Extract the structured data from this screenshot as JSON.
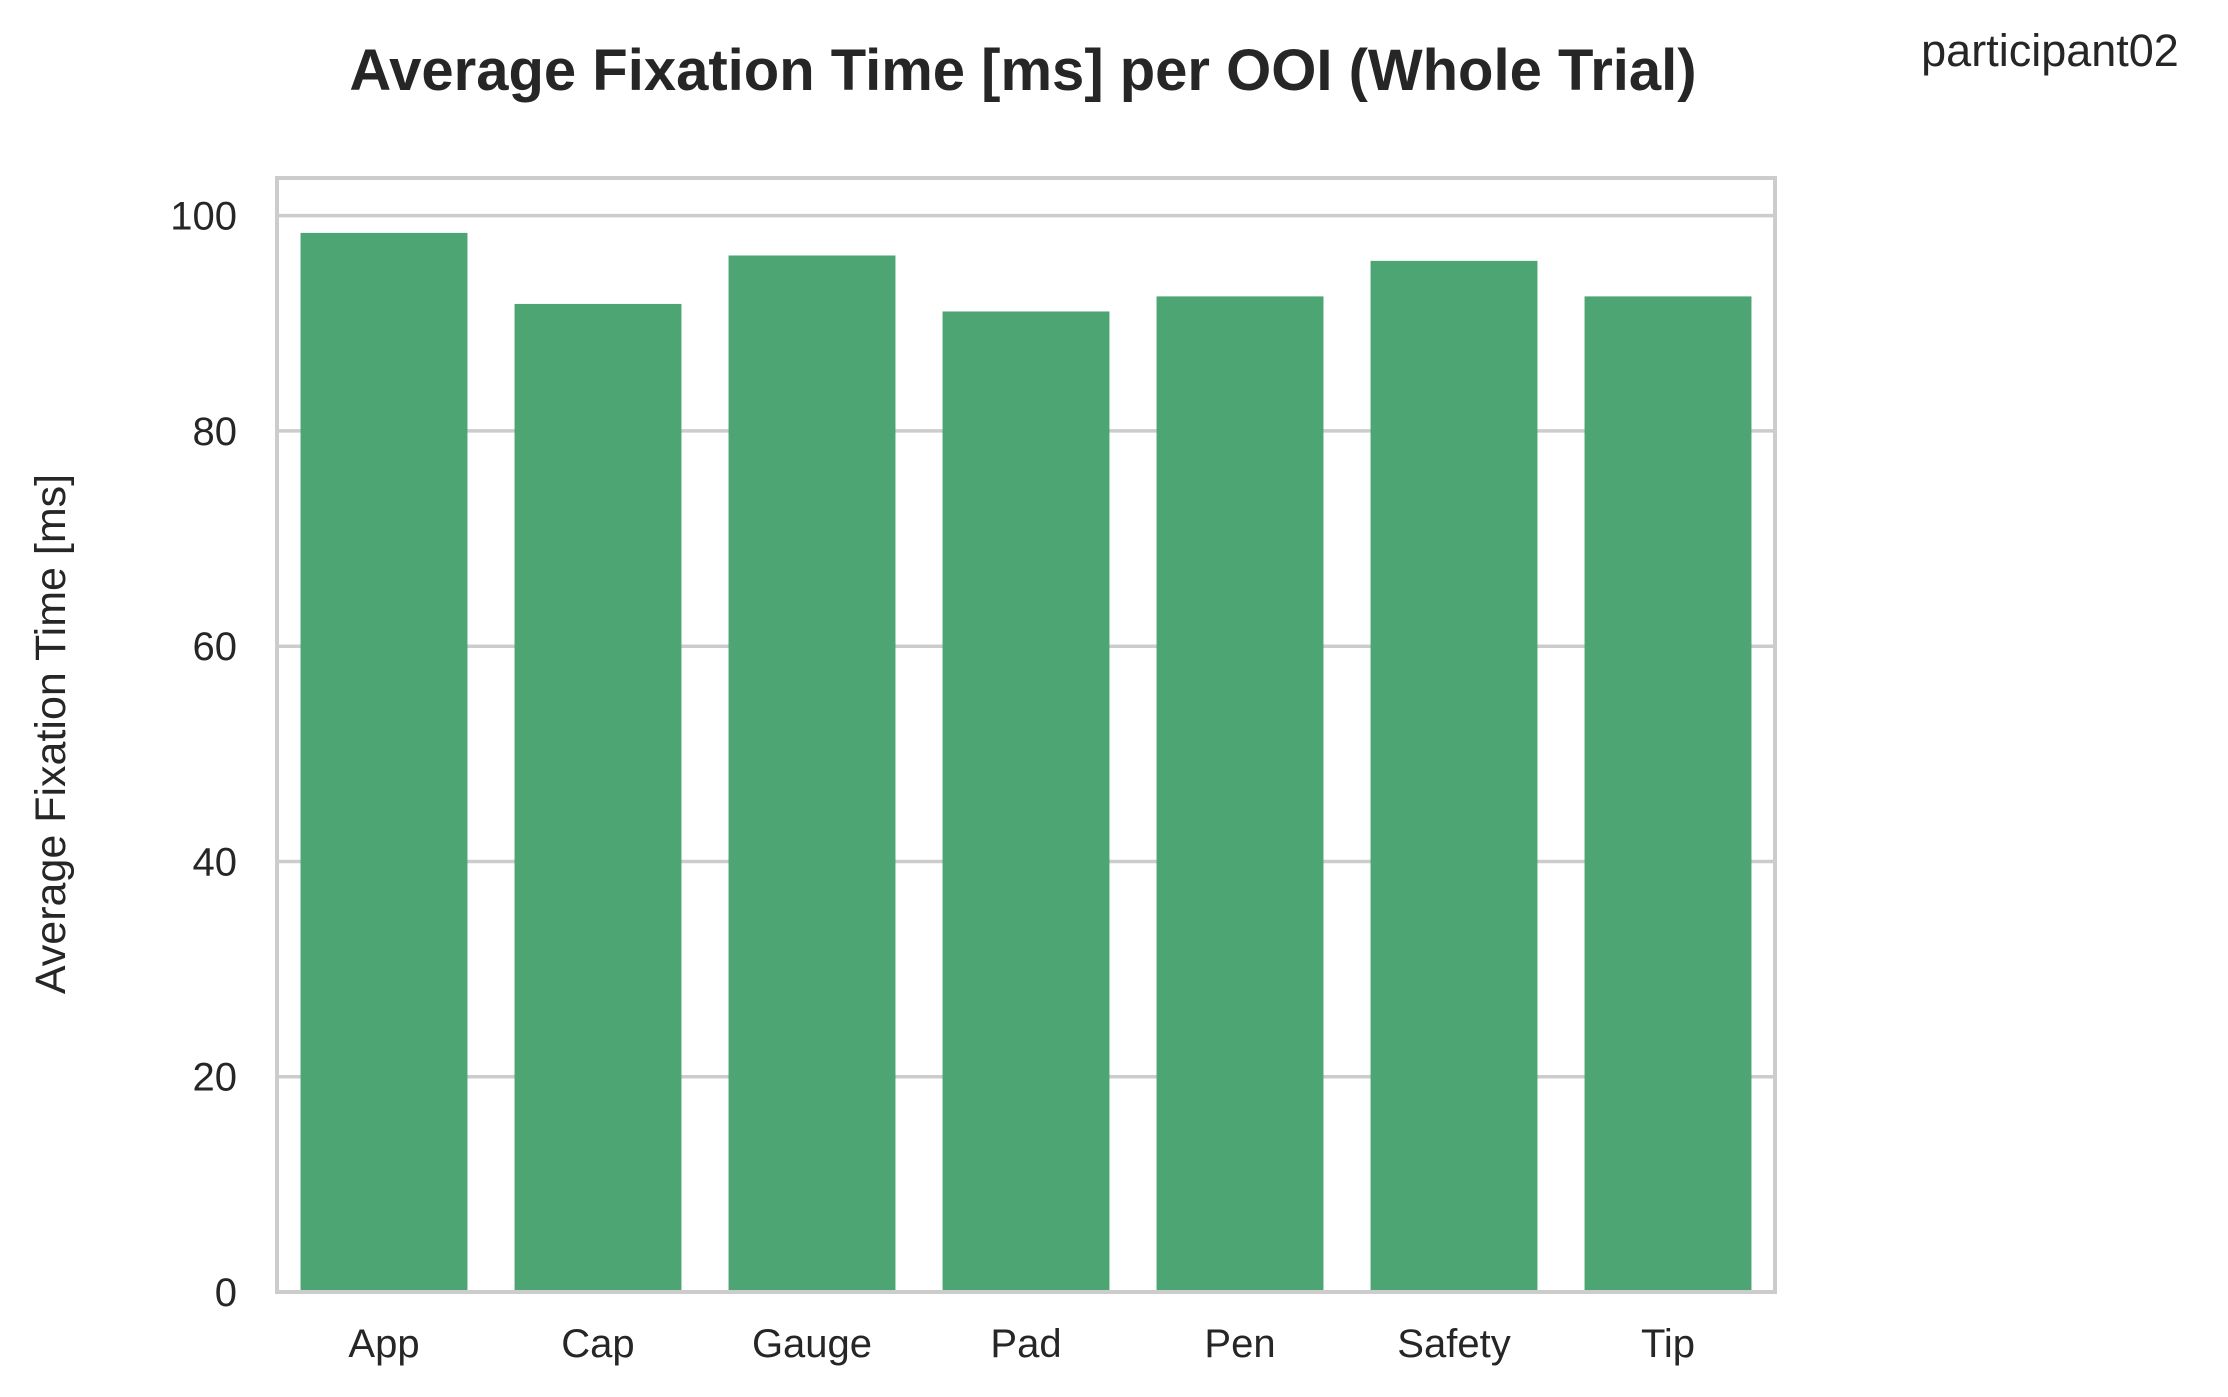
{
  "chart_data": {
    "type": "bar",
    "title": "Average Fixation Time [ms] per OOI (Whole Trial)",
    "annotation": "participant02",
    "xlabel": "",
    "ylabel": "Average Fixation Time [ms]",
    "categories": [
      "App",
      "Cap",
      "Gauge",
      "Pad",
      "Pen",
      "Safety",
      "Tip"
    ],
    "values": [
      98.4,
      91.8,
      96.3,
      91.1,
      92.5,
      95.8,
      92.5
    ],
    "ylim": [
      0,
      103.5
    ],
    "yticks": [
      0,
      20,
      40,
      60,
      80,
      100
    ],
    "grid": true,
    "bar_color": "#4ca573",
    "grid_color": "#cccccc",
    "frame_color": "#cccccc",
    "text_color": "#262626"
  }
}
